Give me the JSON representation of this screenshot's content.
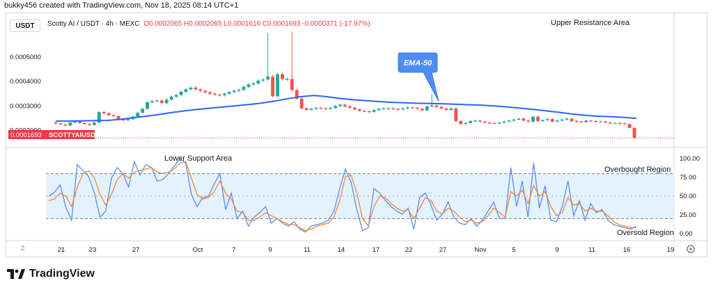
{
  "caption": "bukky456 created with TradingView.com, Nov 18, 2025 08:14 UTC+1",
  "currency": "USDT",
  "legend": {
    "symbol": "Scotty AI / USDT · 4h · MEXC",
    "open": "O0.0002065",
    "high": "H0.0002065",
    "low": "L0.0001610",
    "close": "C0.0001693",
    "change": "-0.0000371 (-17.97%)"
  },
  "last_price_label": "0.0001693",
  "last_price_symbol": "SCOTTYAIUSDT",
  "annotations": {
    "upper_resistance": "Upper Resistance Area",
    "lower_support": "Lower Support Area",
    "ema_callout": "EMA-50",
    "overbought": "Overbought Region",
    "oversold": "Oversold Region"
  },
  "footer_brand": "TradingView",
  "timezone_button": "Z",
  "chart_data": [
    {
      "type": "candlestick",
      "panel": "price",
      "y_ticks": [
        "0.0005000",
        "0.0004000",
        "0.0003000",
        "0.0002000"
      ],
      "ylim": [
        0.00015,
        0.00062
      ],
      "x_ticks": [
        "21",
        "23",
        "27",
        "Oct",
        "7",
        "9",
        "11",
        "14",
        "17",
        "22",
        "27",
        "Nov",
        "5",
        "9",
        "11",
        "16",
        "19"
      ],
      "candles_close": [
        0.000228,
        0.000224,
        0.00022,
        0.000232,
        0.000236,
        0.00023,
        0.000226,
        0.000222,
        0.000232,
        0.000275,
        0.00027,
        0.000262,
        0.000258,
        0.000246,
        0.000241,
        0.000246,
        0.000256,
        0.000272,
        0.000288,
        0.000315,
        0.00032,
        0.000322,
        0.000312,
        0.000326,
        0.000338,
        0.000345,
        0.000358,
        0.000368,
        0.000375,
        0.000368,
        0.000362,
        0.000356,
        0.00035,
        0.000346,
        0.000344,
        0.00035,
        0.000357,
        0.000362,
        0.000366,
        0.000378,
        0.000388,
        0.000392,
        0.000404,
        0.000408,
        0.00042,
        0.00034,
        0.00043,
        0.00041,
        0.00041,
        0.000365,
        0.00033,
        0.00029,
        0.000284,
        0.000288,
        0.000292,
        0.00029,
        0.000288,
        0.000292,
        0.0003,
        0.000305,
        0.000298,
        0.000293,
        0.000286,
        0.00028,
        0.000278,
        0.000276,
        0.000283,
        0.000288,
        0.00029,
        0.00029,
        0.000288,
        0.000286,
        0.00029,
        0.000294,
        0.000292,
        0.000288,
        0.000282,
        0.000298,
        0.000302,
        0.000296,
        0.00029,
        0.000284,
        0.00029,
        0.000238,
        0.000226,
        0.00023,
        0.000238,
        0.00024,
        0.000236,
        0.000232,
        0.00023,
        0.000229,
        0.000232,
        0.000236,
        0.00024,
        0.000244,
        0.000248,
        0.00024,
        0.000236,
        0.000256,
        0.000238,
        0.000242,
        0.000246,
        0.000236,
        0.00024,
        0.000244,
        0.000248,
        0.000238,
        0.000236,
        0.000234,
        0.00024,
        0.000238,
        0.000236,
        0.000236,
        0.000232,
        0.00023,
        0.00023,
        0.000228,
        0.000226,
        0.00021,
        0.000169
      ],
      "ema50": [
        0.000238,
        0.000238,
        0.000239,
        0.00024,
        0.000241,
        0.000245,
        0.000252,
        0.000258,
        0.000265,
        0.000273,
        0.00028,
        0.000286,
        0.000291,
        0.000296,
        0.000301,
        0.000306,
        0.000312,
        0.00032,
        0.00033,
        0.000338,
        0.000343,
        0.000338,
        0.000331,
        0.000326,
        0.000322,
        0.000318,
        0.000315,
        0.000313,
        0.000311,
        0.00031,
        0.000309,
        0.000307,
        0.000305,
        0.000303,
        0.0003,
        0.000296,
        0.000291,
        0.000286,
        0.00028,
        0.000274,
        0.000267,
        0.000262,
        0.000258,
        0.000256,
        0.000253,
        0.000249
      ],
      "series": [
        {
          "name": "EMA-50",
          "color": "#2962ff"
        }
      ],
      "colors": {
        "up": "#26a69a",
        "down": "#ef5350",
        "ema": "#2962ff"
      }
    },
    {
      "type": "line",
      "panel": "oscillator",
      "y_ticks": [
        "100.00",
        "75.00",
        "50.00",
        "25.00",
        "0.00"
      ],
      "ylim": [
        0,
        100
      ],
      "bands": {
        "upper": 80,
        "lower": 20
      },
      "series": [
        {
          "color": "#5b8def",
          "values": [
            50,
            55,
            65,
            35,
            18,
            92,
            84,
            76,
            54,
            22,
            30,
            74,
            88,
            80,
            62,
            96,
            78,
            92,
            88,
            70,
            72,
            80,
            90,
            100,
            94,
            52,
            36,
            48,
            50,
            66,
            80,
            32,
            54,
            20,
            30,
            10,
            22,
            28,
            36,
            14,
            20,
            14,
            10,
            16,
            6,
            2,
            10,
            12,
            14,
            18,
            30,
            60,
            86,
            68,
            32,
            4,
            8,
            60,
            54,
            44,
            36,
            30,
            26,
            34,
            6,
            48,
            54,
            38,
            18,
            26,
            42,
            22,
            14,
            12,
            20,
            10,
            18,
            30,
            42,
            20,
            20,
            88,
            36,
            70,
            22,
            94,
            34,
            64,
            18,
            16,
            36,
            70,
            24,
            44,
            18,
            40,
            28,
            32,
            18,
            12,
            10,
            8,
            6,
            10
          ]
        },
        {
          "color": "#f0863a",
          "values": [
            44,
            46,
            54,
            50,
            36,
            62,
            80,
            84,
            74,
            52,
            38,
            52,
            72,
            80,
            74,
            82,
            84,
            86,
            88,
            82,
            80,
            82,
            86,
            94,
            96,
            74,
            52,
            46,
            48,
            56,
            70,
            54,
            46,
            30,
            28,
            18,
            18,
            22,
            28,
            24,
            20,
            16,
            12,
            12,
            8,
            4,
            6,
            10,
            12,
            14,
            22,
            44,
            76,
            78,
            54,
            20,
            10,
            36,
            50,
            48,
            40,
            34,
            30,
            32,
            20,
            34,
            48,
            44,
            30,
            26,
            34,
            30,
            22,
            16,
            18,
            14,
            16,
            24,
            34,
            28,
            22,
            56,
            50,
            58,
            40,
            64,
            50,
            56,
            36,
            24,
            28,
            48,
            38,
            40,
            30,
            34,
            30,
            30,
            24,
            16,
            12,
            10,
            8,
            8
          ]
        }
      ]
    }
  ]
}
